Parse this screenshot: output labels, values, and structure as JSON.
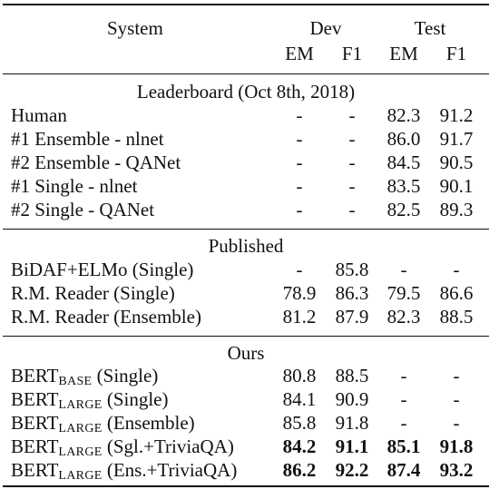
{
  "header": {
    "system": "System",
    "dev": "Dev",
    "test": "Test",
    "dev_em": "EM",
    "dev_f1": "F1",
    "test_em": "EM",
    "test_f1": "F1"
  },
  "sections": {
    "leaderboard": "Leaderboard (Oct 8th, 2018)",
    "published": "Published",
    "ours": "Ours"
  },
  "leaderboard_rows": [
    {
      "system": "Human",
      "dev_em": "-",
      "dev_f1": "-",
      "test_em": "82.3",
      "test_f1": "91.2"
    },
    {
      "system": "#1 Ensemble - nlnet",
      "dev_em": "-",
      "dev_f1": "-",
      "test_em": "86.0",
      "test_f1": "91.7"
    },
    {
      "system": "#2 Ensemble - QANet",
      "dev_em": "-",
      "dev_f1": "-",
      "test_em": "84.5",
      "test_f1": "90.5"
    },
    {
      "system": "#1 Single - nlnet",
      "dev_em": "-",
      "dev_f1": "-",
      "test_em": "83.5",
      "test_f1": "90.1"
    },
    {
      "system": "#2 Single - QANet",
      "dev_em": "-",
      "dev_f1": "-",
      "test_em": "82.5",
      "test_f1": "89.3"
    }
  ],
  "published_rows": [
    {
      "system": "BiDAF+ELMo (Single)",
      "dev_em": "-",
      "dev_f1": "85.8",
      "test_em": "-",
      "test_f1": "-"
    },
    {
      "system": "R.M. Reader (Single)",
      "dev_em": "78.9",
      "dev_f1": "86.3",
      "test_em": "79.5",
      "test_f1": "86.6"
    },
    {
      "system": "R.M. Reader (Ensemble)",
      "dev_em": "81.2",
      "dev_f1": "87.9",
      "test_em": "82.3",
      "test_f1": "88.5"
    }
  ],
  "ours_rows": [
    {
      "model": "BERT",
      "variant": "BASE",
      "setting": "(Single)",
      "dev_em": "80.8",
      "dev_f1": "88.5",
      "test_em": "-",
      "test_f1": "-"
    },
    {
      "model": "BERT",
      "variant": "LARGE",
      "setting": "(Single)",
      "dev_em": "84.1",
      "dev_f1": "90.9",
      "test_em": "-",
      "test_f1": "-"
    },
    {
      "model": "BERT",
      "variant": "LARGE",
      "setting": "(Ensemble)",
      "dev_em": "85.8",
      "dev_f1": "91.8",
      "test_em": "-",
      "test_f1": "-"
    },
    {
      "model": "BERT",
      "variant": "LARGE",
      "setting": "(Sgl.+TriviaQA)",
      "dev_em": "84.2",
      "dev_f1": "91.1",
      "test_em": "85.1",
      "test_f1": "91.8"
    },
    {
      "model": "BERT",
      "variant": "LARGE",
      "setting": "(Ens.+TriviaQA)",
      "dev_em": "86.2",
      "dev_f1": "92.2",
      "test_em": "87.4",
      "test_f1": "93.2"
    }
  ]
}
